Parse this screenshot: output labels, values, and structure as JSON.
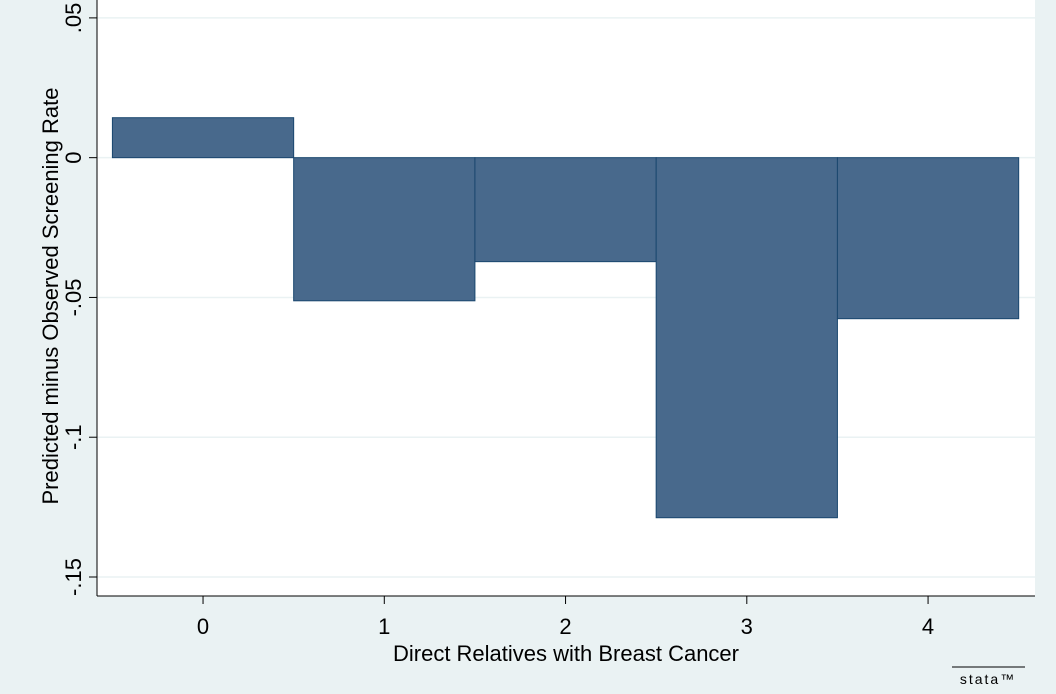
{
  "chart_data": {
    "type": "bar",
    "x": [
      0,
      1,
      2,
      3,
      4
    ],
    "values": [
      0.0143,
      -0.0512,
      -0.0372,
      -0.1288,
      -0.0576
    ],
    "color": "#48698c",
    "edge_color": "#1a476f",
    "xlabel": "Direct Relatives with Breast Cancer",
    "ylabel": "Predicted minus Observed Screening Rate",
    "xlim": [
      -0.585,
      4.59
    ],
    "xticks": [
      0,
      1,
      2,
      3,
      4
    ],
    "ylim": [
      -0.1568,
      0.0564
    ],
    "yticks": [
      {
        "value": -0.15,
        "label": "-.15"
      },
      {
        "value": -0.1,
        "label": "-.1"
      },
      {
        "value": -0.05,
        "label": "-.05"
      },
      0,
      {
        "value": 0.05,
        "label": ".05"
      }
    ],
    "grid": true,
    "logo": "stata™"
  }
}
